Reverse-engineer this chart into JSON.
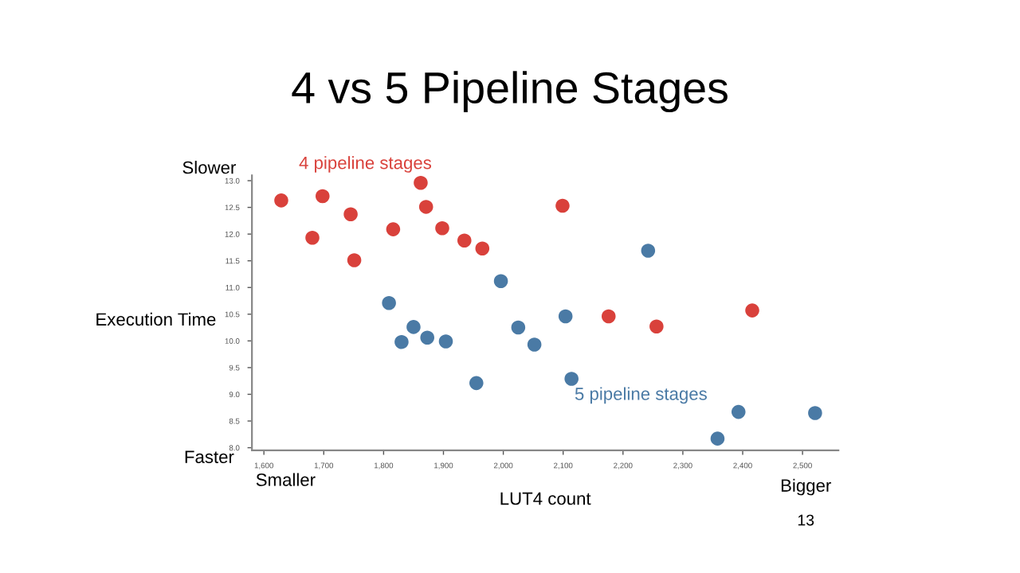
{
  "chart_data": {
    "type": "scatter",
    "title": "4 vs 5 Pipeline Stages",
    "xlabel": "LUT4 count",
    "ylabel": "Execution Time",
    "annotations": [
      "Slower",
      "Faster",
      "Smaller",
      "Bigger",
      "13"
    ],
    "xlim": [
      1580,
      2560
    ],
    "ylim": [
      7.95,
      13.1
    ],
    "xticks": [
      {
        "value": 1600,
        "label": "1,600"
      },
      {
        "value": 1700,
        "label": "1,700"
      },
      {
        "value": 1800,
        "label": "1,800"
      },
      {
        "value": 1900,
        "label": "1,900"
      },
      {
        "value": 2000,
        "label": "2,000"
      },
      {
        "value": 2100,
        "label": "2,100"
      },
      {
        "value": 2200,
        "label": "2,200"
      },
      {
        "value": 2300,
        "label": "2,300"
      },
      {
        "value": 2400,
        "label": "2,400"
      },
      {
        "value": 2500,
        "label": "2,500"
      }
    ],
    "yticks": [
      {
        "value": 8,
        "label": "8.0"
      },
      {
        "value": 8.5,
        "label": "8.5"
      },
      {
        "value": 9,
        "label": "9.0"
      },
      {
        "value": 9.5,
        "label": "9.5"
      },
      {
        "value": 10,
        "label": "10.0"
      },
      {
        "value": 10.5,
        "label": "10.5"
      },
      {
        "value": 11,
        "label": "11.0"
      },
      {
        "value": 11.5,
        "label": "11.5"
      },
      {
        "value": 12,
        "label": "12.0"
      },
      {
        "value": 12.5,
        "label": "12.5"
      },
      {
        "value": 13,
        "label": "13.0"
      }
    ],
    "grid": false,
    "legend": false,
    "marker": "circle",
    "series": [
      {
        "name": "4 pipeline stages",
        "color": "#d9413b",
        "x": [
          1629,
          1681,
          1698,
          1745,
          1751,
          1816,
          1862,
          1871,
          1898,
          1935,
          1965,
          2099,
          2176,
          2256,
          2416
        ],
        "values": [
          12.63,
          11.93,
          12.71,
          12.37,
          11.51,
          12.09,
          12.96,
          12.51,
          12.11,
          11.88,
          11.73,
          12.53,
          10.46,
          10.27,
          10.57
        ]
      },
      {
        "name": "5 pipeline stages",
        "color": "#4a7aa5",
        "x": [
          1809,
          1830,
          1850,
          1873,
          1904,
          1996,
          2025,
          2052,
          2104,
          2242,
          1955,
          2114,
          2358,
          2393,
          2521
        ],
        "values": [
          10.71,
          9.98,
          10.26,
          10.06,
          9.99,
          11.12,
          10.25,
          9.93,
          10.46,
          11.69,
          9.21,
          9.29,
          8.17,
          8.67,
          8.65
        ]
      }
    ]
  }
}
